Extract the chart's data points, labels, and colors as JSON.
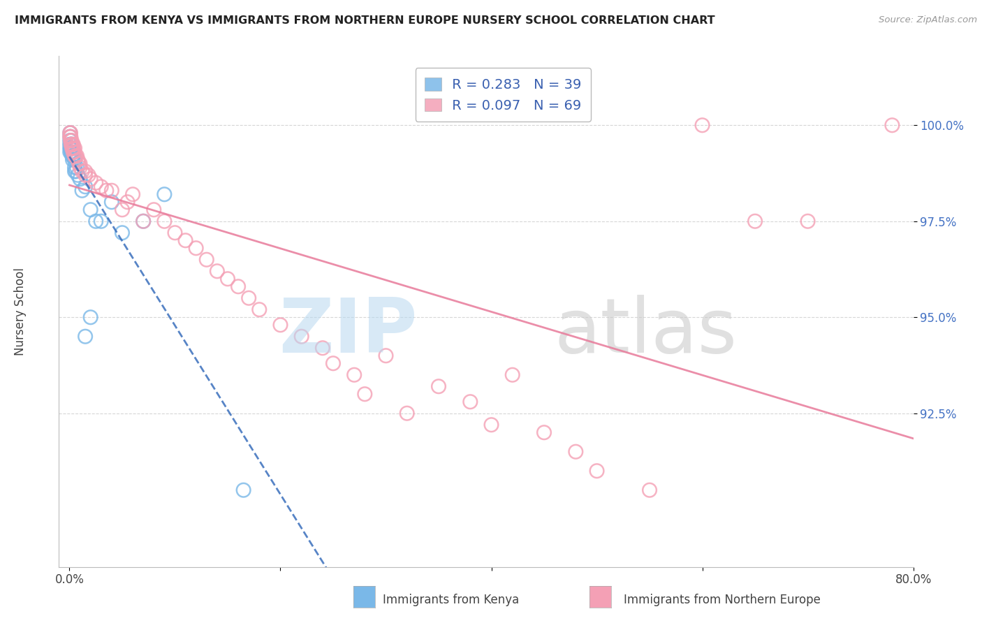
{
  "title": "IMMIGRANTS FROM KENYA VS IMMIGRANTS FROM NORTHERN EUROPE NURSERY SCHOOL CORRELATION CHART",
  "source": "Source: ZipAtlas.com",
  "xlabel_kenya": "Immigrants from Kenya",
  "xlabel_northern": "Immigrants from Northern Europe",
  "ylabel": "Nursery School",
  "xlim": [
    -1.0,
    80.0
  ],
  "ylim": [
    88.5,
    101.8
  ],
  "yticks": [
    92.5,
    95.0,
    97.5,
    100.0
  ],
  "ytick_labels": [
    "92.5%",
    "95.0%",
    "97.5%",
    "100.0%"
  ],
  "xticks": [
    0.0,
    20.0,
    40.0,
    60.0,
    80.0
  ],
  "xtick_labels": [
    "0.0%",
    "",
    "",
    "",
    "80.0%"
  ],
  "kenya_R": 0.283,
  "kenya_N": 39,
  "northern_R": 0.097,
  "northern_N": 69,
  "kenya_color": "#7ab8e8",
  "northern_color": "#f4a0b5",
  "kenya_line_color": "#3a6fbc",
  "northern_line_color": "#e87a9a",
  "kenya_x": [
    0.05,
    0.05,
    0.05,
    0.05,
    0.05,
    0.05,
    0.1,
    0.1,
    0.1,
    0.15,
    0.15,
    0.15,
    0.2,
    0.2,
    0.25,
    0.25,
    0.3,
    0.3,
    0.35,
    0.4,
    0.5,
    0.5,
    0.5,
    0.6,
    0.7,
    0.8,
    1.0,
    1.2,
    1.5,
    2.0,
    2.5,
    3.0,
    4.0,
    5.0,
    7.0,
    9.0,
    2.0,
    1.5,
    16.5
  ],
  "kenya_y": [
    99.8,
    99.7,
    99.6,
    99.5,
    99.4,
    99.3,
    99.6,
    99.5,
    99.4,
    99.5,
    99.4,
    99.3,
    99.5,
    99.3,
    99.4,
    99.2,
    99.3,
    99.1,
    99.2,
    99.2,
    99.1,
    98.9,
    98.8,
    98.8,
    98.9,
    98.7,
    98.6,
    98.3,
    98.4,
    97.8,
    97.5,
    97.5,
    98.0,
    97.2,
    97.5,
    98.2,
    95.0,
    94.5,
    90.5
  ],
  "northern_x": [
    0.05,
    0.05,
    0.08,
    0.1,
    0.1,
    0.12,
    0.15,
    0.15,
    0.2,
    0.2,
    0.25,
    0.3,
    0.3,
    0.35,
    0.35,
    0.4,
    0.45,
    0.5,
    0.5,
    0.6,
    0.7,
    0.8,
    0.9,
    1.0,
    1.0,
    1.2,
    1.5,
    1.5,
    1.8,
    2.0,
    2.5,
    3.0,
    3.5,
    4.0,
    5.0,
    5.5,
    6.0,
    7.0,
    8.0,
    9.0,
    10.0,
    11.0,
    12.0,
    13.0,
    14.0,
    15.0,
    16.0,
    17.0,
    18.0,
    20.0,
    22.0,
    24.0,
    25.0,
    27.0,
    28.0,
    30.0,
    32.0,
    35.0,
    38.0,
    40.0,
    42.0,
    45.0,
    48.0,
    50.0,
    55.0,
    60.0,
    65.0,
    70.0,
    78.0
  ],
  "northern_y": [
    99.8,
    99.7,
    99.7,
    99.8,
    99.6,
    99.7,
    99.6,
    99.5,
    99.6,
    99.5,
    99.4,
    99.5,
    99.4,
    99.5,
    99.3,
    99.4,
    99.3,
    99.4,
    99.2,
    99.2,
    99.2,
    99.1,
    99.0,
    99.0,
    98.9,
    98.8,
    98.8,
    98.7,
    98.7,
    98.6,
    98.5,
    98.4,
    98.3,
    98.3,
    97.8,
    98.0,
    98.2,
    97.5,
    97.8,
    97.5,
    97.2,
    97.0,
    96.8,
    96.5,
    96.2,
    96.0,
    95.8,
    95.5,
    95.2,
    94.8,
    94.5,
    94.2,
    93.8,
    93.5,
    93.0,
    94.0,
    92.5,
    93.2,
    92.8,
    92.2,
    93.5,
    92.0,
    91.5,
    91.0,
    90.5,
    100.0,
    97.5,
    97.5,
    100.0
  ]
}
